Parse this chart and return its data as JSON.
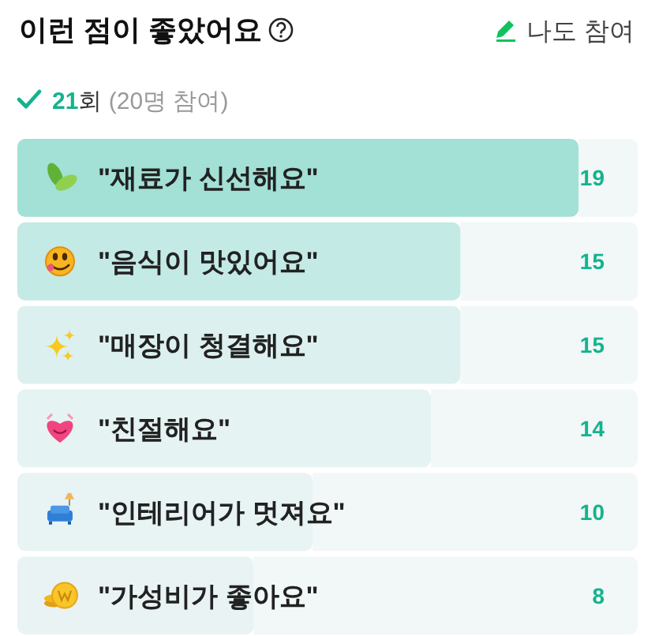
{
  "chart_data": {
    "type": "bar",
    "orientation": "horizontal",
    "title": "이런 점이 좋았어요",
    "subtitle": "21회 (20명 참여)",
    "annotations": [
      "나도 참여"
    ],
    "categories": [
      "\"재료가 신선해요\"",
      "\"음식이 맛있어요\"",
      "\"매장이 청결해요\"",
      "\"친절해요\"",
      "\"인테리어가 멋져요\"",
      "\"가성비가 좋아요\""
    ],
    "values": [
      19,
      15,
      15,
      14,
      10,
      8
    ],
    "colors": [
      "#a3e0d6",
      "#c4eae5",
      "#dcf1ef",
      "#e6f3f3",
      "#e8f3f4",
      "#e9f3f4"
    ],
    "xlim": [
      0,
      21
    ],
    "data_labels": true
  }
}
